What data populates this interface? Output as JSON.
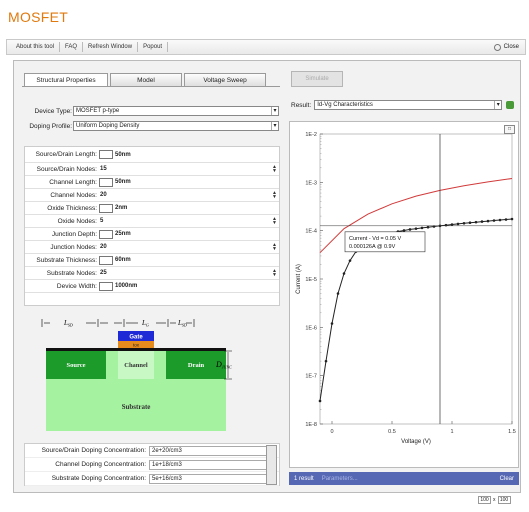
{
  "app": {
    "title": "MOSFET"
  },
  "toolbar": {
    "items": [
      "About this tool",
      "FAQ",
      "Refresh Window",
      "Popout"
    ],
    "close_label": "Close"
  },
  "tabs": {
    "structural": "Structural Properties",
    "model": "Model",
    "voltage": "Voltage Sweep"
  },
  "simulate_label": "Simulate",
  "device": {
    "type_label": "Device Type:",
    "type_value": "MOSFET p-type",
    "doping_label": "Doping Profile:",
    "doping_value": "Uniform Doping Density"
  },
  "params": [
    {
      "label": "Source/Drain Length:",
      "value": "50nm",
      "kind": "box"
    },
    {
      "label": "Source/Drain Nodes:",
      "value": "15",
      "kind": "spin"
    },
    {
      "label": "Channel Length:",
      "value": "50nm",
      "kind": "box"
    },
    {
      "label": "Channel Nodes:",
      "value": "20",
      "kind": "spin"
    },
    {
      "label": "Oxide Thickness:",
      "value": "2nm",
      "kind": "box"
    },
    {
      "label": "Oxide Nodes:",
      "value": "5",
      "kind": "spin"
    },
    {
      "label": "Junction Depth:",
      "value": "25nm",
      "kind": "box"
    },
    {
      "label": "Junction Nodes:",
      "value": "20",
      "kind": "spin"
    },
    {
      "label": "Substrate Thickness:",
      "value": "60nm",
      "kind": "box"
    },
    {
      "label": "Substrate Nodes:",
      "value": "25",
      "kind": "spin"
    },
    {
      "label": "Device Width:",
      "value": "1000nm",
      "kind": "box"
    }
  ],
  "diagram": {
    "dims": [
      "L",
      "L",
      "L"
    ],
    "dim_subs": [
      "SD",
      "G",
      "SD"
    ],
    "gate": "Gate",
    "oxide": "tox",
    "source": "Source",
    "channel": "Channel",
    "drain": "Drain",
    "substrate": "Substrate",
    "junction": "D",
    "junction_sub": "JUNC"
  },
  "concentrations": [
    {
      "label": "Source/Drain Doping Concentration:",
      "value": "2e+20/cm3"
    },
    {
      "label": "Channel Doping Concentration:",
      "value": "1e+18/cm3"
    },
    {
      "label": "Substrate Doping Concentration:",
      "value": "5e+16/cm3"
    }
  ],
  "result": {
    "label": "Result:",
    "value": "Id-Vg Characteristics"
  },
  "status": {
    "results": "1 result",
    "parameters": "Parameters...",
    "clear": "Clear"
  },
  "zoom": {
    "a": "100",
    "b": "100"
  },
  "chart_data": {
    "type": "line",
    "xlabel": "Voltage (V)",
    "ylabel": "Current (A)",
    "xlim": [
      -0.1,
      1.5
    ],
    "ylim": [
      1e-08,
      0.01
    ],
    "y_scale": "log",
    "x_ticks": [
      "0",
      "0.5",
      "1",
      "1.5"
    ],
    "y_ticks": [
      "1E-8",
      "1E-7",
      "1E-6",
      "1E-5",
      "1E-4",
      "1E-3",
      "1E-2"
    ],
    "series": [
      {
        "color": "#d23a3a",
        "markers": false,
        "x": [
          -0.1,
          0.1,
          0.3,
          0.5,
          0.7,
          0.9,
          1.1,
          1.3,
          1.5
        ],
        "y": [
          3.5e-05,
          0.00011,
          0.00022,
          0.00036,
          0.00052,
          0.00068,
          0.00085,
          0.00102,
          0.0012
        ]
      },
      {
        "color": "#222222",
        "markers": true,
        "x": [
          -0.1,
          -0.05,
          0.0,
          0.05,
          0.1,
          0.15,
          0.2,
          0.25,
          0.3,
          0.35,
          0.4,
          0.45,
          0.5,
          0.55,
          0.6,
          0.65,
          0.7,
          0.75,
          0.8,
          0.85,
          0.9,
          0.95,
          1.0,
          1.05,
          1.1,
          1.15,
          1.2,
          1.25,
          1.3,
          1.35,
          1.4,
          1.45,
          1.5
        ],
        "y": [
          3e-08,
          2e-07,
          1.2e-06,
          5e-06,
          1.3e-05,
          2.4e-05,
          3.7e-05,
          4.9e-05,
          6e-05,
          6.9e-05,
          7.7e-05,
          8.4e-05,
          9e-05,
          9.6e-05,
          0.000101,
          0.000106,
          0.00011,
          0.000114,
          0.000118,
          0.000122,
          0.000126,
          0.00013,
          0.000134,
          0.000138,
          0.000142,
          0.000146,
          0.00015,
          0.000154,
          0.000158,
          0.000162,
          0.000166,
          0.00017,
          0.000174
        ]
      }
    ],
    "cursor": {
      "x": 0.9
    },
    "annotation": {
      "line1": "Current - Vd = 0.05 V",
      "line2": "0.000126A @ 0.9V"
    }
  }
}
